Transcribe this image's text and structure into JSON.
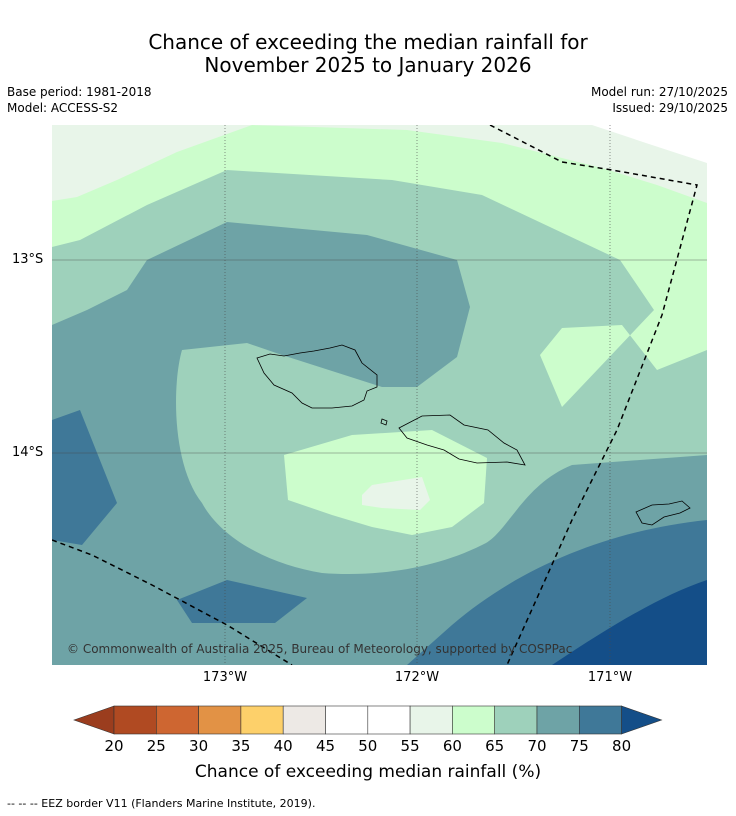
{
  "header": {
    "title_line1": "Chance of exceeding the median rainfall for",
    "title_line2": "November 2025 to January 2026",
    "base_period": "Base period: 1981-2018",
    "model": "Model: ACCESS-S2",
    "model_run": "Model run: 27/10/2025",
    "issued": "Issued: 29/10/2025"
  },
  "map": {
    "lat_labels": [
      "13°S",
      "14°S"
    ],
    "lon_labels": [
      "173°W",
      "172°W",
      "171°W"
    ],
    "copyright": "© Commonwealth of Australia 2025, Bureau of Meteorology, supported by COSPPac"
  },
  "colorbar": {
    "title": "Chance of exceeding median rainfall (%)",
    "ticks": [
      "20",
      "25",
      "30",
      "35",
      "40",
      "45",
      "50",
      "55",
      "60",
      "65",
      "70",
      "75",
      "80"
    ],
    "colors": [
      "#b04a22",
      "#ce6631",
      "#e29245",
      "#fdd06a",
      "#ede9e5",
      "#ffffff",
      "#ffffff",
      "#e8f5e9",
      "#ccfdcc",
      "#9ed1bb",
      "#6ea3a6",
      "#3f7898"
    ],
    "under_color": "#9b3d1e",
    "over_color": "#144e88"
  },
  "footnote": "--  --  -- EEZ border V11 (Flanders Marine Institute, 2019)."
}
